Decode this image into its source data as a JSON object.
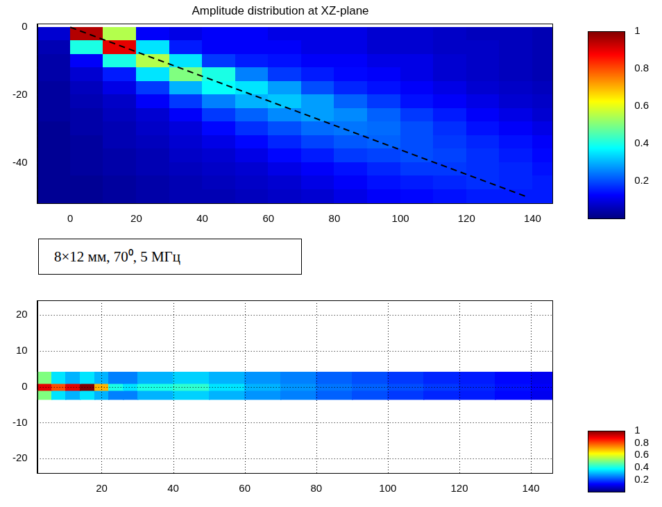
{
  "chart_data": [
    {
      "type": "heatmap",
      "title": "Amplitude distribution at XZ-plane",
      "color": "jet",
      "grid": false,
      "xlim": [
        -10,
        146
      ],
      "xticks": [
        0,
        20,
        40,
        60,
        80,
        100,
        120,
        140
      ],
      "ylim": [
        -52,
        1
      ],
      "yticks": [
        -40,
        -20,
        0
      ],
      "cells": {
        "x_edges": [
          -10,
          0,
          10,
          20,
          30,
          40,
          50,
          60,
          70,
          80,
          90,
          100,
          110,
          120,
          130,
          140,
          146
        ],
        "y_edges": [
          0,
          -4,
          -8,
          -12,
          -16,
          -20,
          -24,
          -28,
          -32,
          -36,
          -40,
          -44,
          -48,
          -52
        ],
        "values": [
          [
            0.08,
            0.95,
            0.55,
            0.12,
            0.1,
            0.12,
            0.12,
            0.1,
            0.1,
            0.1,
            0.08,
            0.08,
            0.07,
            0.06,
            0.06,
            0.05
          ],
          [
            0.05,
            0.4,
            0.9,
            0.35,
            0.15,
            0.12,
            0.12,
            0.12,
            0.1,
            0.1,
            0.08,
            0.08,
            0.07,
            0.07,
            0.06,
            0.05
          ],
          [
            0.04,
            0.12,
            0.4,
            0.55,
            0.35,
            0.18,
            0.15,
            0.14,
            0.12,
            0.12,
            0.1,
            0.1,
            0.08,
            0.07,
            0.06,
            0.05
          ],
          [
            0.04,
            0.08,
            0.15,
            0.35,
            0.5,
            0.4,
            0.25,
            0.18,
            0.15,
            0.13,
            0.12,
            0.1,
            0.08,
            0.07,
            0.06,
            0.05
          ],
          [
            0.03,
            0.06,
            0.1,
            0.18,
            0.3,
            0.38,
            0.35,
            0.28,
            0.2,
            0.16,
            0.14,
            0.12,
            0.1,
            0.08,
            0.07,
            0.06
          ],
          [
            0.03,
            0.05,
            0.07,
            0.12,
            0.18,
            0.25,
            0.3,
            0.32,
            0.28,
            0.22,
            0.18,
            0.14,
            0.12,
            0.1,
            0.08,
            0.07
          ],
          [
            0.03,
            0.04,
            0.06,
            0.08,
            0.12,
            0.18,
            0.22,
            0.26,
            0.28,
            0.26,
            0.22,
            0.18,
            0.15,
            0.12,
            0.1,
            0.08
          ],
          [
            0.02,
            0.04,
            0.05,
            0.07,
            0.09,
            0.13,
            0.17,
            0.2,
            0.23,
            0.24,
            0.23,
            0.2,
            0.17,
            0.14,
            0.12,
            0.1
          ],
          [
            0.02,
            0.03,
            0.05,
            0.06,
            0.08,
            0.1,
            0.13,
            0.16,
            0.19,
            0.21,
            0.22,
            0.2,
            0.18,
            0.16,
            0.14,
            0.12
          ],
          [
            0.02,
            0.03,
            0.04,
            0.05,
            0.07,
            0.08,
            0.1,
            0.13,
            0.15,
            0.18,
            0.19,
            0.2,
            0.19,
            0.17,
            0.15,
            0.13
          ],
          [
            0.02,
            0.03,
            0.04,
            0.05,
            0.06,
            0.07,
            0.08,
            0.1,
            0.12,
            0.14,
            0.16,
            0.18,
            0.18,
            0.17,
            0.16,
            0.14
          ],
          [
            0.02,
            0.02,
            0.03,
            0.04,
            0.05,
            0.06,
            0.07,
            0.08,
            0.1,
            0.12,
            0.14,
            0.15,
            0.16,
            0.17,
            0.16,
            0.15
          ],
          [
            0.02,
            0.02,
            0.03,
            0.04,
            0.05,
            0.05,
            0.06,
            0.07,
            0.08,
            0.1,
            0.12,
            0.13,
            0.14,
            0.15,
            0.15,
            0.15
          ]
        ]
      },
      "colorbar": {
        "range": [
          0,
          1
        ],
        "ticks": [
          0.2,
          0.4,
          0.6,
          0.8,
          1
        ]
      },
      "series": [
        {
          "type": "line",
          "line_style": "dashed",
          "color": "#000000",
          "x": [
            0,
            138
          ],
          "values": [
            0,
            -50
          ]
        }
      ]
    },
    {
      "type": "heatmap",
      "annotation": "8×12 мм, 70⁰, 5 МГц",
      "color": "jet",
      "grid": true,
      "xlim": [
        2,
        146
      ],
      "xticks": [
        20,
        40,
        60,
        80,
        100,
        120,
        140
      ],
      "ylim": [
        -24,
        24
      ],
      "yticks": [
        -20,
        -10,
        0,
        10,
        20
      ],
      "cells": {
        "x_edges": [
          2,
          6,
          10,
          14,
          18,
          22,
          26,
          30,
          40,
          50,
          60,
          70,
          80,
          90,
          100,
          110,
          120,
          130,
          140,
          146
        ],
        "y_edges": [
          -3.5,
          -1,
          1,
          4
        ],
        "values": [
          [
            0.5,
            0.35,
            0.3,
            0.35,
            0.3,
            0.25,
            0.25,
            0.3,
            0.33,
            0.3,
            0.27,
            0.25,
            0.22,
            0.2,
            0.18,
            0.16,
            0.15,
            0.13,
            0.11
          ],
          [
            0.9,
            0.8,
            0.9,
            1.0,
            0.7,
            0.4,
            0.35,
            0.4,
            0.42,
            0.35,
            0.3,
            0.27,
            0.24,
            0.22,
            0.2,
            0.18,
            0.16,
            0.14,
            0.12
          ],
          [
            0.5,
            0.35,
            0.3,
            0.35,
            0.3,
            0.25,
            0.25,
            0.3,
            0.33,
            0.3,
            0.27,
            0.25,
            0.22,
            0.2,
            0.18,
            0.16,
            0.15,
            0.13,
            0.11
          ]
        ]
      },
      "colorbar": {
        "range": [
          0,
          1
        ],
        "ticks": [
          0.2,
          0.4,
          0.6,
          0.8,
          1
        ]
      }
    }
  ]
}
